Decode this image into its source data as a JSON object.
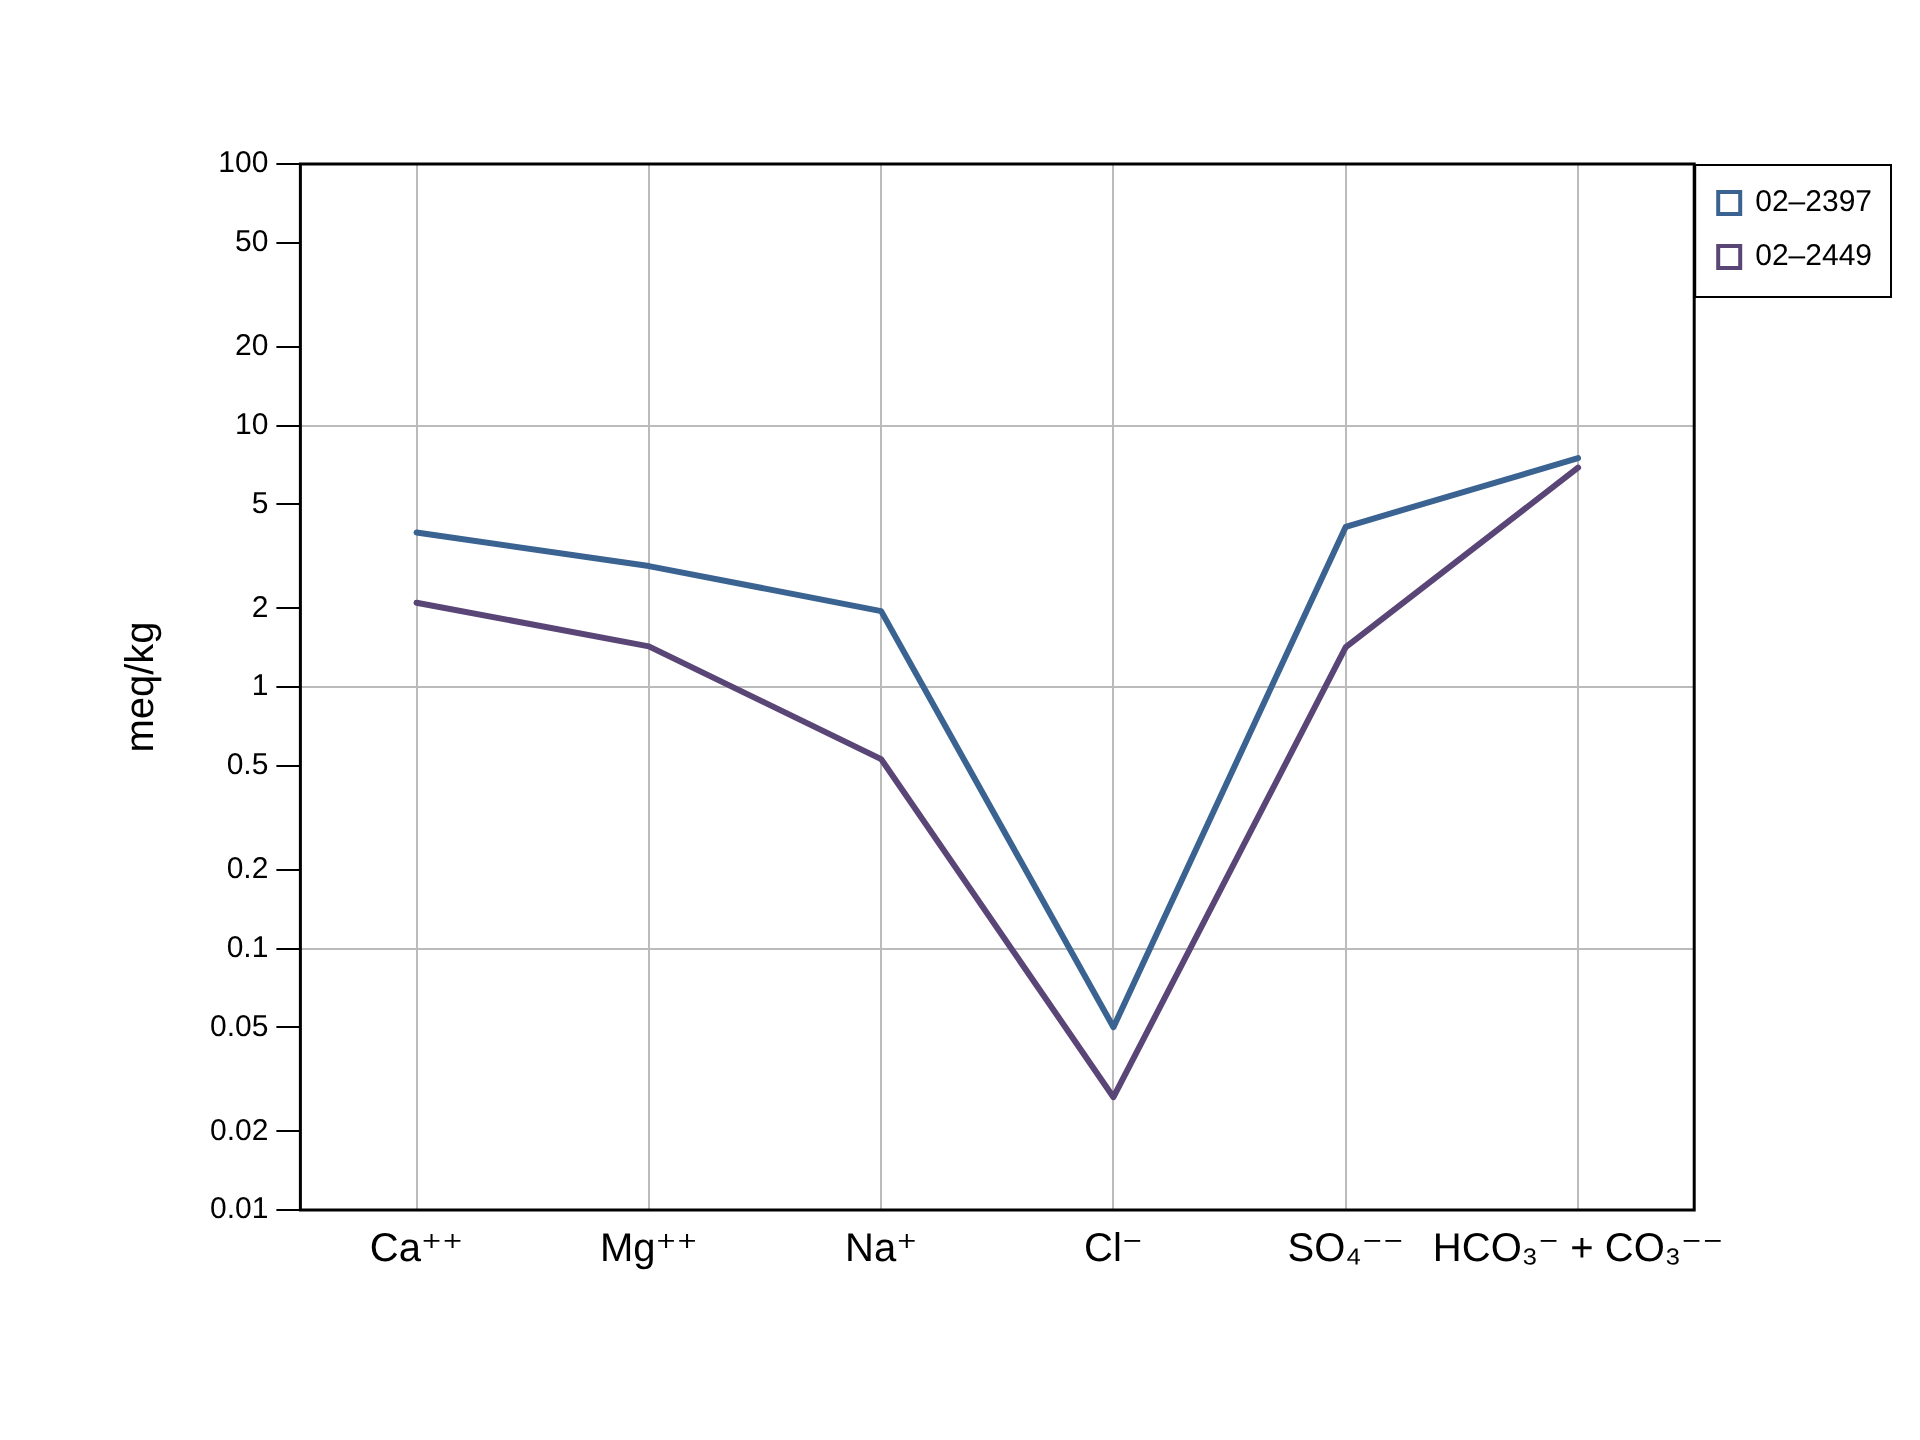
{
  "chart_data": {
    "type": "line",
    "ylabel": "meq/kg",
    "categories": [
      "Ca⁺⁺",
      "Mg⁺⁺",
      "Na⁺",
      "Cl⁻",
      "SO₄⁻⁻",
      "HCO₃⁻ + CO₃⁻⁻"
    ],
    "series": [
      {
        "name": "02–2397",
        "color": "#3a6391",
        "values": [
          3.9,
          2.9,
          1.95,
          0.05,
          4.1,
          7.5
        ]
      },
      {
        "name": "02–2449",
        "color": "#5a4577",
        "values": [
          2.1,
          1.43,
          0.53,
          0.027,
          1.42,
          6.9
        ]
      }
    ],
    "log": "y",
    "ylim": [
      0.01,
      100
    ],
    "yticks": [
      0.01,
      0.02,
      0.05,
      0.1,
      0.2,
      0.5,
      1,
      2,
      5,
      10,
      20,
      50,
      100
    ],
    "grid": true,
    "legend": "top right",
    "marker": "none",
    "line_style": "solid"
  }
}
